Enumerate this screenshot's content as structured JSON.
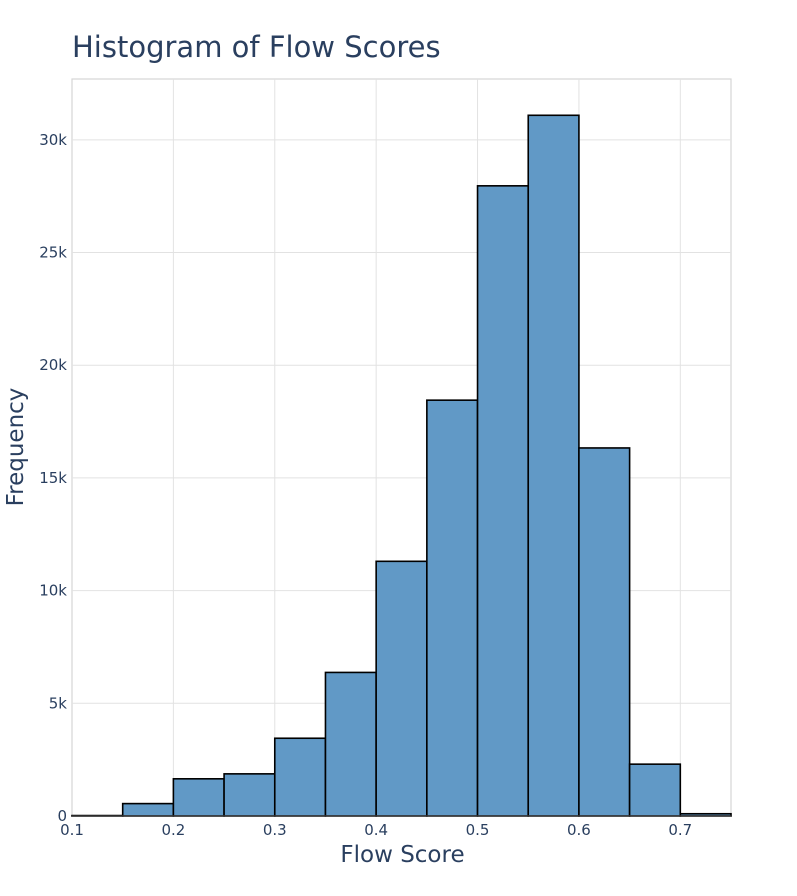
{
  "chart_data": {
    "type": "bar",
    "title": "Histogram of Flow Scores",
    "xlabel": "Flow Score",
    "ylabel": "Frequency",
    "xlim": [
      0.1,
      0.75
    ],
    "ylim": [
      0,
      32700
    ],
    "x_ticks": [
      "0.1",
      "0.2",
      "0.3",
      "0.4",
      "0.5",
      "0.6",
      "0.7"
    ],
    "x_tick_values": [
      0.1,
      0.2,
      0.3,
      0.4,
      0.5,
      0.6,
      0.7
    ],
    "y_ticks": [
      "0",
      "5k",
      "10k",
      "15k",
      "20k",
      "25k",
      "30k"
    ],
    "y_tick_values": [
      0,
      5000,
      10000,
      15000,
      20000,
      25000,
      30000
    ],
    "grid": true,
    "bar_color": "#6199c6",
    "bar_edge_color": "#000000",
    "bins": [
      {
        "start": 0.1,
        "end": 0.15,
        "count": 20
      },
      {
        "start": 0.15,
        "end": 0.2,
        "count": 550
      },
      {
        "start": 0.2,
        "end": 0.25,
        "count": 1650
      },
      {
        "start": 0.25,
        "end": 0.3,
        "count": 1870
      },
      {
        "start": 0.3,
        "end": 0.35,
        "count": 3450
      },
      {
        "start": 0.35,
        "end": 0.4,
        "count": 6370
      },
      {
        "start": 0.4,
        "end": 0.45,
        "count": 11300
      },
      {
        "start": 0.45,
        "end": 0.5,
        "count": 18450
      },
      {
        "start": 0.5,
        "end": 0.55,
        "count": 27960
      },
      {
        "start": 0.55,
        "end": 0.6,
        "count": 31090
      },
      {
        "start": 0.6,
        "end": 0.65,
        "count": 16330
      },
      {
        "start": 0.65,
        "end": 0.7,
        "count": 2300
      },
      {
        "start": 0.7,
        "end": 0.75,
        "count": 100
      }
    ]
  }
}
